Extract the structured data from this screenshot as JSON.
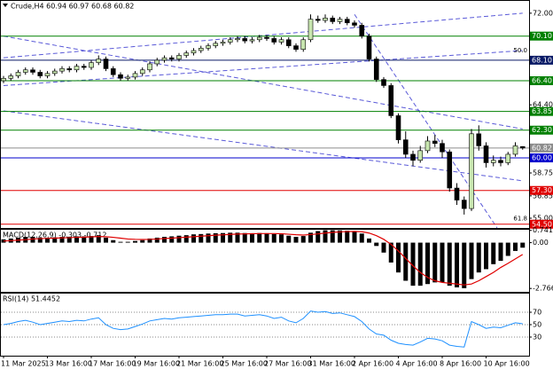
{
  "chart_data": [
    {
      "type": "candlestick",
      "title": "Crude,H4  60.94 60.97 60.68 60.82",
      "categories": [
        "11 Mar 2025",
        null,
        null,
        null,
        null,
        null,
        "13 Mar 16:00",
        null,
        null,
        null,
        null,
        null,
        "17 Mar 16:00",
        null,
        null,
        null,
        null,
        null,
        "19 Mar 16:00",
        null,
        null,
        null,
        null,
        null,
        "21 Mar 16:00",
        null,
        null,
        null,
        null,
        null,
        "25 Mar 16:00",
        null,
        null,
        null,
        null,
        null,
        "27 Mar 16:00",
        null,
        null,
        null,
        null,
        null,
        "31 Mar 16:00",
        null,
        null,
        null,
        null,
        null,
        "2 Apr 16:00",
        null,
        null,
        null,
        null,
        null,
        "4 Apr 16:00",
        null,
        null,
        null,
        null,
        null,
        "8 Apr 16:00",
        null,
        null,
        null,
        null,
        null,
        "10 Apr 16:00",
        null,
        null,
        null,
        null,
        null
      ],
      "open": [
        66.4,
        66.6,
        66.8,
        67.1,
        67.3,
        67.1,
        66.8,
        67.0,
        67.2,
        67.4,
        67.3,
        67.6,
        67.5,
        67.9,
        68.2,
        67.4,
        66.9,
        66.6,
        66.7,
        67.0,
        67.3,
        67.8,
        68.1,
        68.3,
        68.2,
        68.5,
        68.7,
        68.9,
        69.1,
        69.3,
        69.5,
        69.6,
        69.8,
        69.9,
        69.7,
        69.8,
        70.0,
        69.9,
        69.6,
        69.8,
        69.3,
        69.0,
        69.8,
        71.5,
        71.4,
        71.6,
        71.3,
        71.5,
        71.2,
        71.0,
        70.1,
        68.2,
        66.5,
        66.0,
        63.5,
        61.5,
        60.3,
        59.8,
        60.6,
        61.4,
        61.2,
        60.5,
        57.5,
        56.5,
        55.8,
        62.0,
        61.0,
        59.6,
        59.8,
        59.6,
        60.3,
        60.94
      ],
      "high": [
        66.8,
        67.0,
        67.3,
        67.5,
        67.5,
        67.3,
        67.2,
        67.4,
        67.6,
        67.6,
        67.8,
        67.8,
        68.1,
        68.5,
        68.4,
        67.6,
        67.1,
        66.9,
        67.2,
        67.5,
        68.0,
        68.3,
        68.5,
        68.5,
        68.7,
        68.9,
        69.1,
        69.3,
        69.5,
        69.7,
        69.8,
        70.0,
        70.1,
        70.1,
        70.0,
        70.2,
        70.2,
        70.1,
        70.0,
        70.0,
        69.5,
        70.0,
        71.9,
        71.8,
        71.9,
        71.8,
        71.7,
        71.7,
        71.4,
        71.2,
        70.3,
        68.4,
        66.7,
        66.2,
        63.7,
        62.2,
        60.6,
        61.0,
        61.8,
        61.9,
        61.5,
        60.7,
        57.9,
        56.8,
        62.4,
        62.7,
        61.3,
        60.2,
        60.1,
        60.5,
        61.3,
        60.97
      ],
      "low": [
        66.2,
        66.4,
        66.6,
        66.9,
        66.9,
        66.6,
        66.6,
        66.8,
        67.0,
        67.1,
        67.1,
        67.3,
        67.3,
        67.7,
        67.2,
        66.7,
        66.4,
        66.4,
        66.5,
        66.8,
        67.1,
        67.6,
        67.9,
        68.0,
        68.0,
        68.3,
        68.5,
        68.7,
        68.9,
        69.1,
        69.3,
        69.4,
        69.6,
        69.5,
        69.5,
        69.6,
        69.7,
        69.4,
        69.4,
        69.1,
        68.8,
        68.8,
        69.6,
        71.2,
        71.2,
        71.1,
        71.1,
        71.0,
        70.8,
        69.9,
        68.0,
        66.3,
        65.8,
        63.3,
        61.2,
        60.0,
        59.3,
        59.6,
        60.4,
        60.9,
        60.0,
        57.2,
        56.1,
        55.3,
        55.6,
        60.6,
        59.2,
        59.3,
        59.3,
        59.4,
        60.1,
        60.68
      ],
      "close": [
        66.6,
        66.8,
        67.1,
        67.3,
        67.1,
        66.8,
        67.0,
        67.2,
        67.4,
        67.3,
        67.6,
        67.5,
        67.9,
        68.2,
        67.4,
        66.9,
        66.6,
        66.7,
        67.0,
        67.3,
        67.8,
        68.1,
        68.3,
        68.2,
        68.5,
        68.7,
        68.9,
        69.1,
        69.3,
        69.5,
        69.6,
        69.8,
        69.9,
        69.7,
        69.8,
        70.0,
        69.9,
        69.6,
        69.8,
        69.3,
        69.0,
        69.8,
        71.5,
        71.4,
        71.6,
        71.3,
        71.5,
        71.2,
        71.0,
        70.1,
        68.2,
        66.5,
        66.0,
        63.5,
        61.5,
        60.3,
        59.8,
        60.6,
        61.4,
        61.2,
        60.5,
        57.5,
        56.5,
        55.8,
        62.0,
        61.0,
        59.6,
        59.8,
        59.6,
        60.3,
        61.0,
        60.82
      ],
      "bull_color": "#c8e6b0",
      "bear_color": "#000000",
      "ylim": [
        54.19,
        73.02
      ],
      "yticks": [
        {
          "value": 72,
          "label": "72.00"
        },
        {
          "value": 64.4,
          "label": "64.40"
        },
        {
          "value": 58.75,
          "label": "58.75"
        },
        {
          "value": 56.85,
          "label": "56.85"
        },
        {
          "value": 55,
          "label": "55.00"
        }
      ],
      "levels": [
        {
          "value": 70.1,
          "label": "70.10",
          "color": "#008000"
        },
        {
          "value": 68.1,
          "label": "68.10",
          "color": "#0a1a66"
        },
        {
          "value": 66.4,
          "label": "66.40",
          "color": "#008000"
        },
        {
          "value": 63.85,
          "label": "63.85",
          "color": "#008000"
        },
        {
          "value": 62.3,
          "label": "62.30",
          "color": "#008000"
        },
        {
          "value": 60.82,
          "label": "60.82",
          "color": "#8c8c8c"
        },
        {
          "value": 60,
          "label": "60.00",
          "color": "#0000cd"
        },
        {
          "value": 57.3,
          "label": "57.30",
          "color": "#e00000"
        },
        {
          "value": 54.5,
          "label": "54.50",
          "color": "#e00000"
        }
      ],
      "fib_labels": [
        {
          "value": 68.55,
          "label": "50.0"
        },
        {
          "value": 54.6,
          "label": "61.8"
        }
      ],
      "trendlines": [
        {
          "points": [
            [
              0,
              68.3
            ],
            [
              71,
              72.0
            ]
          ]
        },
        {
          "points": [
            [
              0,
              66.0
            ],
            [
              71,
              68.9
            ]
          ]
        },
        {
          "points": [
            [
              0,
              70.1
            ],
            [
              71,
              62.4
            ]
          ]
        },
        {
          "points": [
            [
              0,
              63.9
            ],
            [
              71,
              58.1
            ]
          ]
        },
        {
          "points": [
            [
              48,
              71.9
            ],
            [
              67.5,
              54.2
            ]
          ]
        }
      ],
      "trendline_color": "#5a5ad8"
    },
    {
      "type": "macd",
      "title": "MACD(12,26,9) -0.303 -0.712",
      "histogram": [
        0.2,
        0.25,
        0.3,
        0.35,
        0.35,
        0.3,
        0.3,
        0.32,
        0.35,
        0.35,
        0.38,
        0.38,
        0.4,
        0.45,
        0.3,
        0.15,
        0.05,
        0.05,
        0.1,
        0.15,
        0.25,
        0.3,
        0.35,
        0.38,
        0.42,
        0.45,
        0.5,
        0.52,
        0.55,
        0.57,
        0.58,
        0.6,
        0.6,
        0.58,
        0.57,
        0.58,
        0.57,
        0.52,
        0.5,
        0.42,
        0.35,
        0.4,
        0.6,
        0.7,
        0.75,
        0.75,
        0.74,
        0.72,
        0.68,
        0.55,
        0.25,
        -0.2,
        -0.6,
        -1.2,
        -1.8,
        -2.3,
        -2.6,
        -2.6,
        -2.5,
        -2.4,
        -2.4,
        -2.6,
        -2.7,
        -2.75,
        -2.2,
        -1.8,
        -1.6,
        -1.3,
        -1.1,
        -0.8,
        -0.5,
        -0.303
      ],
      "signal": [
        0.1,
        0.12,
        0.15,
        0.18,
        0.22,
        0.24,
        0.26,
        0.27,
        0.29,
        0.3,
        0.32,
        0.33,
        0.35,
        0.37,
        0.36,
        0.32,
        0.27,
        0.22,
        0.2,
        0.19,
        0.2,
        0.22,
        0.25,
        0.27,
        0.3,
        0.33,
        0.36,
        0.39,
        0.42,
        0.45,
        0.47,
        0.5,
        0.52,
        0.53,
        0.54,
        0.55,
        0.55,
        0.55,
        0.54,
        0.51,
        0.48,
        0.46,
        0.49,
        0.53,
        0.58,
        0.62,
        0.65,
        0.67,
        0.68,
        0.66,
        0.58,
        0.42,
        0.2,
        -0.1,
        -0.5,
        -0.95,
        -1.4,
        -1.8,
        -2.1,
        -2.3,
        -2.4,
        -2.45,
        -2.5,
        -2.55,
        -2.5,
        -2.3,
        -2.05,
        -1.8,
        -1.5,
        -1.25,
        -0.98,
        -0.712
      ],
      "histogram_color": "#000000",
      "signal_color": "#e00000",
      "ylim": [
        -2.97,
        0.78
      ],
      "yticks": [
        0.741,
        {
          "value": 0,
          "label": "0.00"
        },
        -2.766
      ]
    },
    {
      "type": "line",
      "title": "RSI(14) 51.4452",
      "values": [
        50,
        52,
        55,
        57,
        54,
        50,
        52,
        54,
        56,
        55,
        57,
        56,
        59,
        61,
        50,
        44,
        42,
        43,
        47,
        51,
        56,
        58,
        60,
        59,
        61,
        62,
        63,
        64,
        65,
        66,
        66,
        67,
        67,
        64,
        65,
        66,
        64,
        60,
        62,
        56,
        53,
        60,
        72,
        70,
        71,
        68,
        69,
        66,
        63,
        55,
        43,
        35,
        33,
        25,
        20,
        18,
        17,
        22,
        28,
        27,
        24,
        17,
        15,
        14,
        55,
        50,
        44,
        46,
        45,
        49,
        53,
        51.4452
      ],
      "color": "#1e90ff",
      "ylim": [
        0,
        100
      ],
      "yticks": [
        70,
        50,
        30
      ],
      "grid": true
    }
  ]
}
